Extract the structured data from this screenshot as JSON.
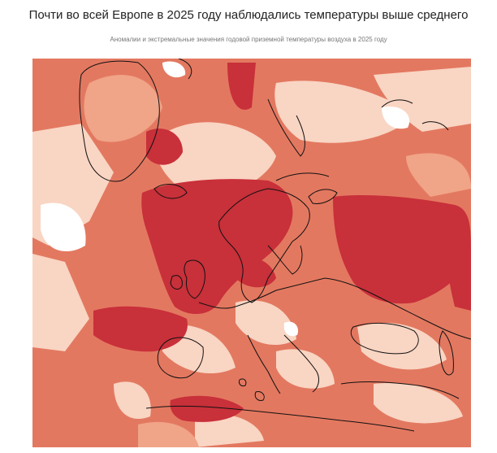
{
  "header": {
    "title": "Почти во всей Европе в 2025 году наблюдались температуры выше среднего",
    "subtitle": "Аномалии и экстремальные значения годовой приземной температуры воздуха в 2025 году"
  },
  "map": {
    "region": "Europe",
    "colors": {
      "extreme_warm": "#c8303a",
      "warm": "#e37860",
      "moderate": "#f0a488",
      "slight": "#f9d5c3",
      "near_average": "#ffffff",
      "coastline": "#111111"
    },
    "legend_shown": false
  }
}
